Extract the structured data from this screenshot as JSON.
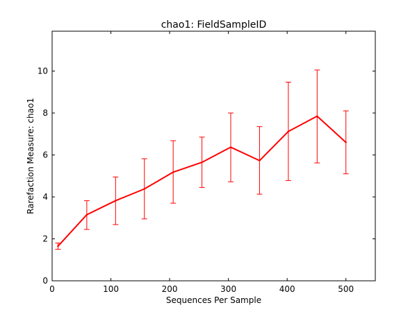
{
  "chart_data": {
    "type": "line",
    "title": "chao1: FieldSampleID",
    "xlabel": "Sequences Per Sample",
    "ylabel": "Rarefaction Measure: chao1",
    "xlim": [
      0,
      550
    ],
    "ylim": [
      0,
      11.9
    ],
    "x_ticks": [
      0,
      100,
      200,
      300,
      400,
      500
    ],
    "y_ticks": [
      0,
      2,
      4,
      6,
      8,
      10
    ],
    "grid": false,
    "series_color": "#ff0000",
    "series": [
      {
        "x": [
          10,
          59,
          108,
          157,
          206,
          255,
          304,
          353,
          402,
          451,
          500
        ],
        "y": [
          1.65,
          3.15,
          3.82,
          4.38,
          5.18,
          5.65,
          6.37,
          5.73,
          7.12,
          7.85,
          6.6
        ],
        "err_low": [
          1.5,
          2.45,
          2.68,
          2.95,
          3.7,
          4.45,
          4.72,
          4.13,
          4.78,
          5.62,
          5.1
        ],
        "err_high": [
          1.8,
          3.82,
          4.95,
          5.82,
          6.68,
          6.85,
          8.0,
          7.35,
          9.47,
          10.05,
          8.1
        ]
      }
    ]
  }
}
